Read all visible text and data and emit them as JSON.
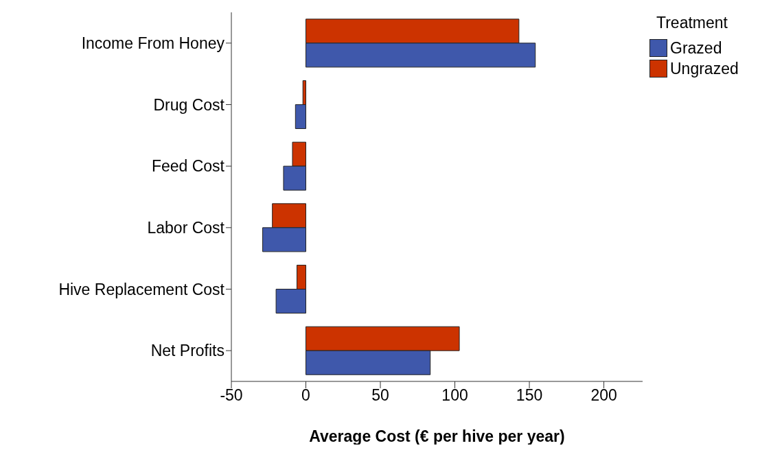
{
  "chart_data": {
    "type": "bar",
    "orientation": "horizontal",
    "categories": [
      "Income From Honey",
      "Drug Cost",
      "Feed Cost",
      "Labor Cost",
      "Hive Replacement Cost",
      "Net Profits"
    ],
    "series": [
      {
        "name": "Grazed",
        "color": "#3f58ab",
        "values": [
          154,
          -7,
          -15,
          -29,
          -20,
          83.5
        ]
      },
      {
        "name": "Ungrazed",
        "color": "#cc3300",
        "values": [
          143,
          -2,
          -9,
          -22.5,
          -6,
          103
        ]
      }
    ],
    "xlabel": "Average Cost (€ per hive per year)",
    "legend_title": "Treatment",
    "legend": "top right",
    "grid": false,
    "xlim": [
      -50,
      226
    ],
    "xticks": [
      -50,
      0,
      50,
      100,
      150,
      200
    ]
  }
}
